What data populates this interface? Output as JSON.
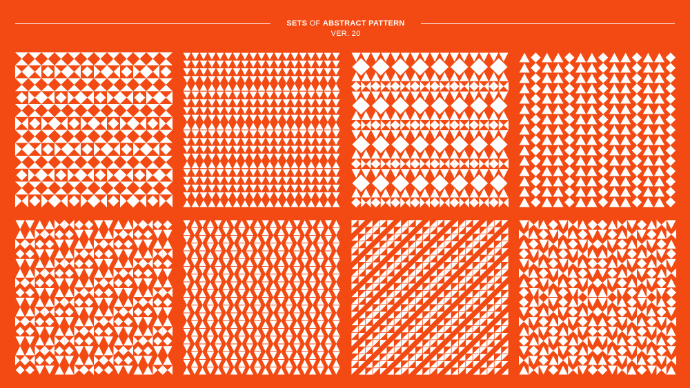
{
  "header": {
    "title_part1": "SETS ",
    "title_part2": "OF ",
    "title_part3": "ABSTRACT PATTERN",
    "subtitle": "VER. 20"
  },
  "colors": {
    "background": "#f24a12",
    "pattern_fill": "#ffffff"
  },
  "patterns": [
    {
      "name": "pattern-1",
      "style": "hourglass-diamond"
    },
    {
      "name": "pattern-2",
      "style": "stacked-triangles"
    },
    {
      "name": "pattern-3",
      "style": "diamond-rows"
    },
    {
      "name": "pattern-4",
      "style": "diamond-columns"
    },
    {
      "name": "pattern-5",
      "style": "triangle-bands"
    },
    {
      "name": "pattern-6",
      "style": "dense-triangles"
    },
    {
      "name": "pattern-7",
      "style": "diagonal-triangles"
    },
    {
      "name": "pattern-8",
      "style": "diamond-medallion"
    }
  ]
}
